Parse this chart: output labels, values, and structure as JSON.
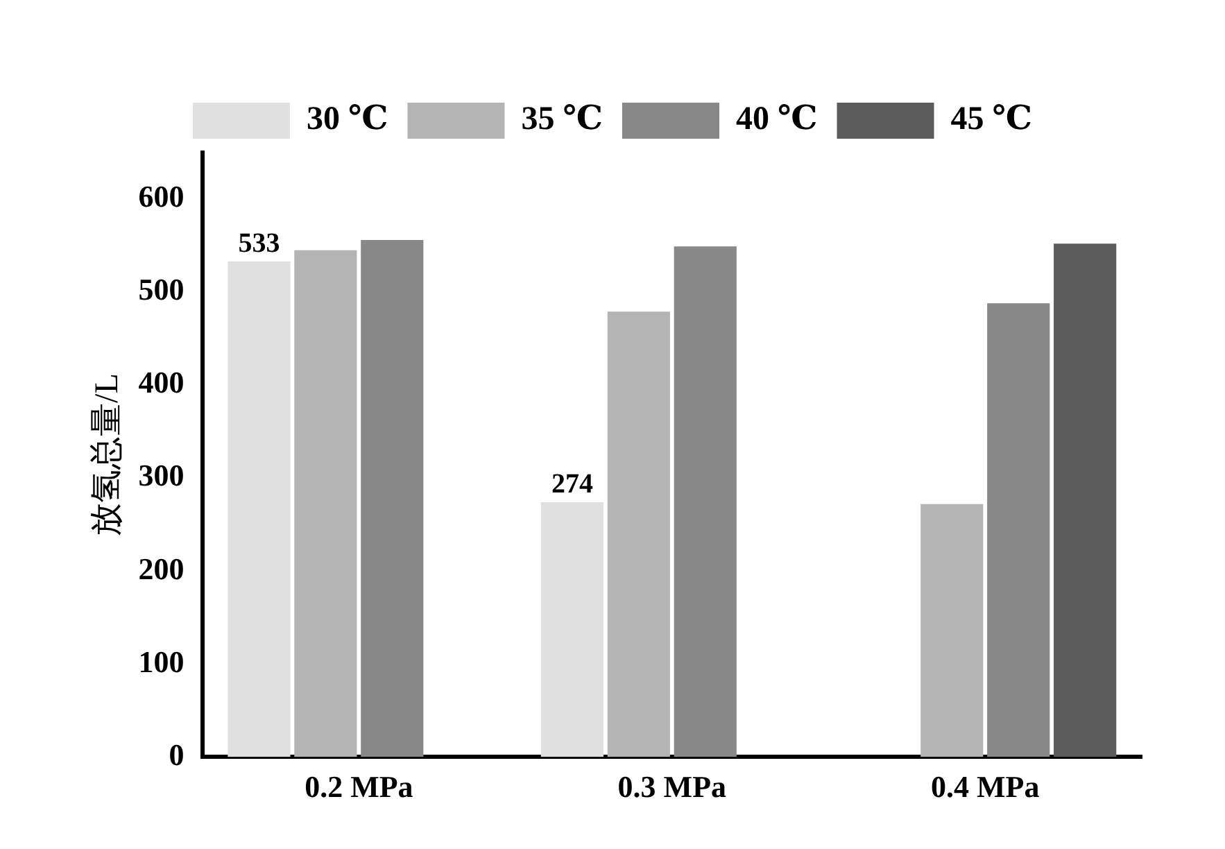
{
  "chart_data": {
    "type": "bar",
    "ylabel": "放氢总量/L",
    "categories": [
      "0.2 MPa",
      "0.3 MPa",
      "0.4 MPa"
    ],
    "series": [
      {
        "name": "30 ℃",
        "color": "#e0e0e0",
        "values": [
          533,
          274,
          null
        ],
        "value_labels": [
          "533",
          "274",
          null
        ]
      },
      {
        "name": "35 ℃",
        "color": "#b4b4b4",
        "values": [
          545,
          479,
          272
        ]
      },
      {
        "name": "40 ℃",
        "color": "#888888",
        "values": [
          556,
          549,
          488
        ]
      },
      {
        "name": "45 ℃",
        "color": "#5c5c5c",
        "values": [
          null,
          null,
          552
        ]
      }
    ],
    "ylim": [
      0,
      650
    ],
    "yticks": [
      0,
      100,
      200,
      300,
      400,
      500,
      600
    ],
    "grid": false,
    "legend": "top"
  }
}
